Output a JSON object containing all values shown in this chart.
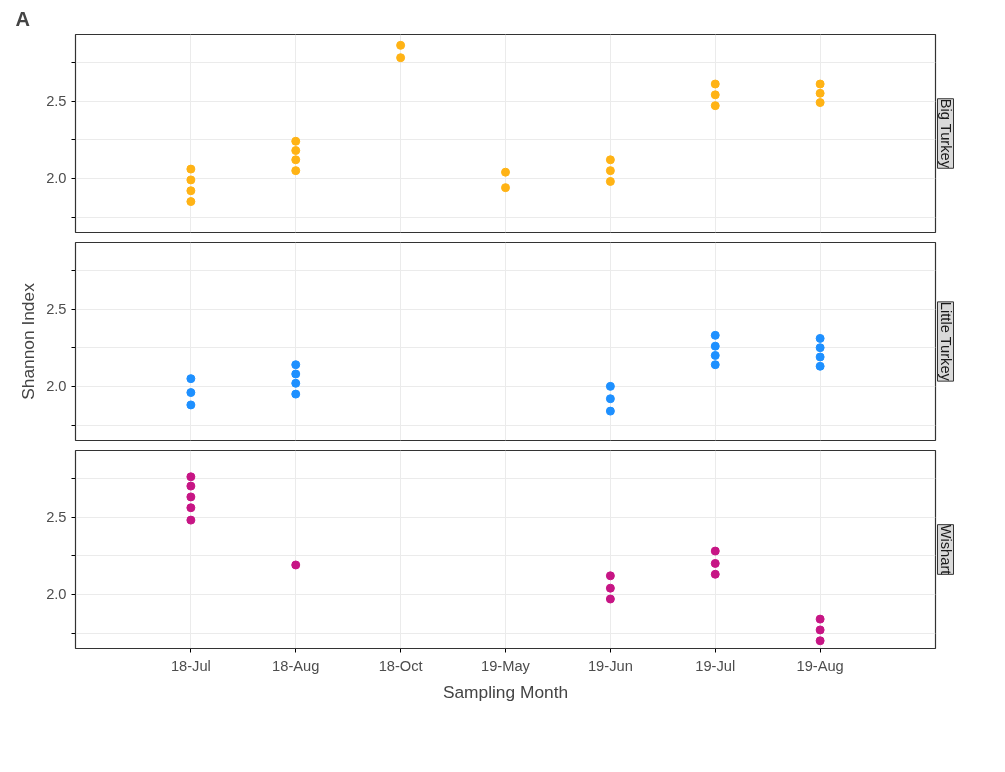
{
  "chart_data": [
    {
      "type": "scatter",
      "title": "Big Turkey",
      "annotations": [
        "A"
      ],
      "marker": "circle",
      "grid": true,
      "tick_labels": "y",
      "categories": [
        "18-Jul",
        "18-Aug",
        "18-Oct",
        "19-May",
        "19-Jun",
        "19-Jul",
        "19-Aug"
      ],
      "ylim": [
        1.65,
        2.93
      ],
      "yticks": [
        {
          "value": 1.75,
          "label": null
        },
        {
          "value": 2,
          "label": "2.0"
        },
        {
          "value": 2.25,
          "label": null
        },
        {
          "value": 2.5,
          "label": "2.5"
        },
        {
          "value": 2.75,
          "label": null
        }
      ],
      "series": [
        {
          "color": "#ffb315",
          "x": [
            "18-Jul",
            "18-Jul",
            "18-Jul",
            "18-Jul",
            "18-Aug",
            "18-Aug",
            "18-Aug",
            "18-Aug",
            "18-Oct",
            "18-Oct",
            "19-May",
            "19-May",
            "19-Jun",
            "19-Jun",
            "19-Jun",
            "19-Jul",
            "19-Jul",
            "19-Jul",
            "19-Aug",
            "19-Aug",
            "19-Aug"
          ],
          "values": [
            1.85,
            1.92,
            1.99,
            2.06,
            2.05,
            2.12,
            2.18,
            2.24,
            2.78,
            2.86,
            1.94,
            2.04,
            1.98,
            2.05,
            2.12,
            2.47,
            2.54,
            2.61,
            2.49,
            2.55,
            2.61
          ]
        }
      ]
    },
    {
      "type": "scatter",
      "title": "Little Turkey",
      "ylabel": "Shannon Index",
      "marker": "circle",
      "grid": true,
      "tick_labels": "y",
      "categories": [
        "18-Jul",
        "18-Aug",
        "18-Oct",
        "19-May",
        "19-Jun",
        "19-Jul",
        "19-Aug"
      ],
      "ylim": [
        1.65,
        2.93
      ],
      "yticks": [
        {
          "value": 1.75,
          "label": null
        },
        {
          "value": 2,
          "label": "2.0"
        },
        {
          "value": 2.25,
          "label": null
        },
        {
          "value": 2.5,
          "label": "2.5"
        },
        {
          "value": 2.75,
          "label": null
        }
      ],
      "series": [
        {
          "color": "#1e90ff",
          "x": [
            "18-Jul",
            "18-Jul",
            "18-Jul",
            "18-Aug",
            "18-Aug",
            "18-Aug",
            "18-Aug",
            "19-Jun",
            "19-Jun",
            "19-Jun",
            "19-Jul",
            "19-Jul",
            "19-Jul",
            "19-Jul",
            "19-Aug",
            "19-Aug",
            "19-Aug",
            "19-Aug"
          ],
          "values": [
            1.88,
            1.96,
            2.05,
            1.95,
            2.02,
            2.08,
            2.14,
            1.84,
            1.92,
            2.0,
            2.14,
            2.2,
            2.26,
            2.33,
            2.13,
            2.19,
            2.25,
            2.31
          ]
        }
      ]
    },
    {
      "type": "scatter",
      "title": "Wishart",
      "xlabel": "Sampling Month",
      "marker": "circle",
      "grid": true,
      "categories": [
        "18-Jul",
        "18-Aug",
        "18-Oct",
        "19-May",
        "19-Jun",
        "19-Jul",
        "19-Aug"
      ],
      "ylim": [
        1.65,
        2.93
      ],
      "yticks": [
        {
          "value": 1.75,
          "label": null
        },
        {
          "value": 2,
          "label": "2.0"
        },
        {
          "value": 2.25,
          "label": null
        },
        {
          "value": 2.5,
          "label": "2.5"
        },
        {
          "value": 2.75,
          "label": null
        }
      ],
      "series": [
        {
          "color": "#c71585",
          "x": [
            "18-Jul",
            "18-Jul",
            "18-Jul",
            "18-Jul",
            "18-Jul",
            "18-Aug",
            "19-Jun",
            "19-Jun",
            "19-Jun",
            "19-Jul",
            "19-Jul",
            "19-Jul",
            "19-Aug",
            "19-Aug",
            "19-Aug"
          ],
          "values": [
            2.48,
            2.56,
            2.63,
            2.7,
            2.76,
            2.19,
            1.97,
            2.04,
            2.12,
            2.13,
            2.2,
            2.28,
            1.7,
            1.77,
            1.84
          ]
        }
      ]
    }
  ]
}
